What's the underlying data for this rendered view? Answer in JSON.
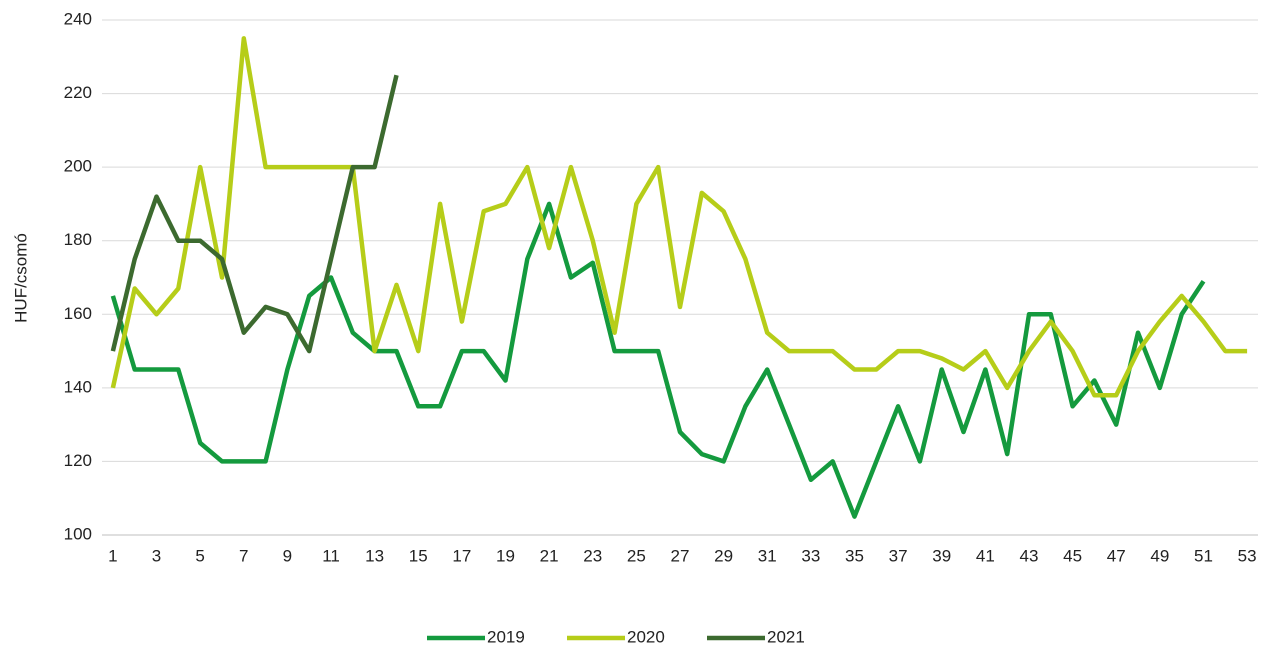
{
  "chart_data": {
    "type": "line",
    "y_label": "HUF/csomó",
    "categories": [
      1,
      null,
      3,
      null,
      5,
      null,
      7,
      null,
      9,
      null,
      11,
      null,
      13,
      null,
      15,
      null,
      17,
      null,
      19,
      null,
      21,
      null,
      23,
      null,
      25,
      null,
      27,
      null,
      29,
      null,
      31,
      null,
      33,
      null,
      35,
      null,
      37,
      null,
      39,
      null,
      41,
      null,
      43,
      null,
      45,
      null,
      47,
      null,
      49,
      null,
      51,
      null,
      53
    ],
    "series": [
      {
        "name": "2019",
        "color": "#149a3e",
        "values": [
          165,
          145,
          145,
          145,
          125,
          120,
          120,
          120,
          145,
          165,
          170,
          155,
          150,
          150,
          135,
          135,
          150,
          150,
          142,
          175,
          190,
          170,
          174,
          150,
          150,
          150,
          128,
          122,
          120,
          135,
          145,
          130,
          115,
          120,
          105,
          120,
          135,
          120,
          145,
          128,
          145,
          122,
          160,
          160,
          135,
          142,
          130,
          155,
          140,
          160,
          169,
          null,
          null
        ]
      },
      {
        "name": "2020",
        "color": "#b6cd19",
        "values": [
          140,
          167,
          160,
          167,
          200,
          170,
          235,
          200,
          200,
          200,
          200,
          200,
          150,
          168,
          150,
          190,
          158,
          188,
          190,
          200,
          178,
          200,
          180,
          155,
          190,
          200,
          162,
          193,
          188,
          175,
          155,
          150,
          150,
          150,
          145,
          145,
          150,
          150,
          148,
          145,
          150,
          140,
          150,
          158,
          150,
          138,
          138,
          150,
          158,
          165,
          158,
          150,
          150
        ]
      },
      {
        "name": "2021",
        "color": "#3c6a2f",
        "values": [
          150,
          175,
          192,
          180,
          180,
          175,
          155,
          162,
          160,
          150,
          175,
          200,
          200,
          225,
          null,
          null,
          null,
          null,
          null,
          null,
          null,
          null,
          null,
          null,
          null,
          null,
          null,
          null,
          null,
          null,
          null,
          null,
          null,
          null,
          null,
          null,
          null,
          null,
          null,
          null,
          null,
          null,
          null,
          null,
          null,
          null,
          null,
          null,
          null,
          null,
          null,
          null,
          null
        ]
      }
    ],
    "ylim": [
      100,
      240
    ],
    "yticks": [
      100,
      120,
      140,
      160,
      180,
      200,
      220,
      240
    ],
    "grid": true,
    "legend": "bottom"
  }
}
